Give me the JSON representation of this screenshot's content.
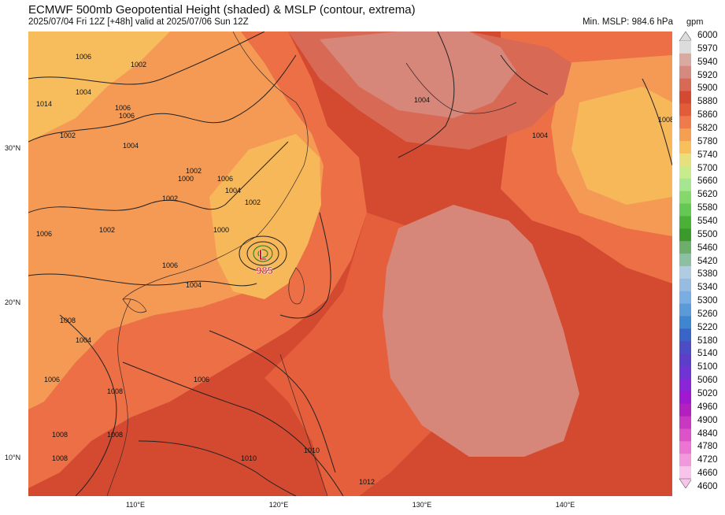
{
  "header": {
    "title": "ECMWF 500mb Geopotential Height (shaded) & MSLP (contour, extrema)",
    "subtitle": "2025/07/04 Fri 12Z [+48h] valid at 2025/07/06 Sun 12Z",
    "min_mslp": "Min. MSLP: 984.6 hPa",
    "unit": "gpm"
  },
  "axes": {
    "lat_labels": [
      "30°N",
      "20°N",
      "10°N"
    ],
    "lon_labels": [
      "110°E",
      "120°E",
      "130°E",
      "140°E"
    ]
  },
  "colorbar": {
    "labels": [
      "6000",
      "5970",
      "5940",
      "5920",
      "5900",
      "5880",
      "5860",
      "5820",
      "5780",
      "5740",
      "5700",
      "5660",
      "5620",
      "5580",
      "5540",
      "5500",
      "5460",
      "5420",
      "5380",
      "5340",
      "5300",
      "5260",
      "5220",
      "5180",
      "5140",
      "5100",
      "5060",
      "5020",
      "4960",
      "4900",
      "4840",
      "4780",
      "4720",
      "4660",
      "4600"
    ],
    "colors": [
      "#dcdcdc",
      "#d8aaa0",
      "#d48a7e",
      "#d86a55",
      "#d44a30",
      "#e25c3a",
      "#ef7a4c",
      "#f4a052",
      "#f7c05a",
      "#e8e07c",
      "#c8ec8c",
      "#a6e690",
      "#86d86c",
      "#66c854",
      "#4ab038",
      "#3c9a2c",
      "#6eae6a",
      "#8cc0a0",
      "#b0cce0",
      "#98bce0",
      "#7aaee2",
      "#5a9ad8",
      "#3e86d0",
      "#3a64c8",
      "#4e4cc4",
      "#5e3ec8",
      "#7034d4",
      "#8a26d8",
      "#a018d0",
      "#b220c0",
      "#c838c0",
      "#dc52c8",
      "#ec74d2",
      "#f298dc",
      "#f8c4ec"
    ]
  },
  "storm": {
    "label": "L",
    "pressure": "985"
  },
  "isobar_labels": [
    "1006",
    "1002",
    "1004",
    "1006",
    "1014",
    "1002",
    "1006",
    "1004",
    "1000",
    "1002",
    "1002",
    "1006",
    "1004",
    "1000",
    "1002",
    "1006",
    "1002",
    "1008",
    "1004",
    "1006",
    "1008",
    "1008",
    "1008",
    "1008",
    "1006",
    "1010",
    "1010",
    "1012",
    "1006",
    "1004",
    "1004",
    "1004",
    "1008"
  ]
}
